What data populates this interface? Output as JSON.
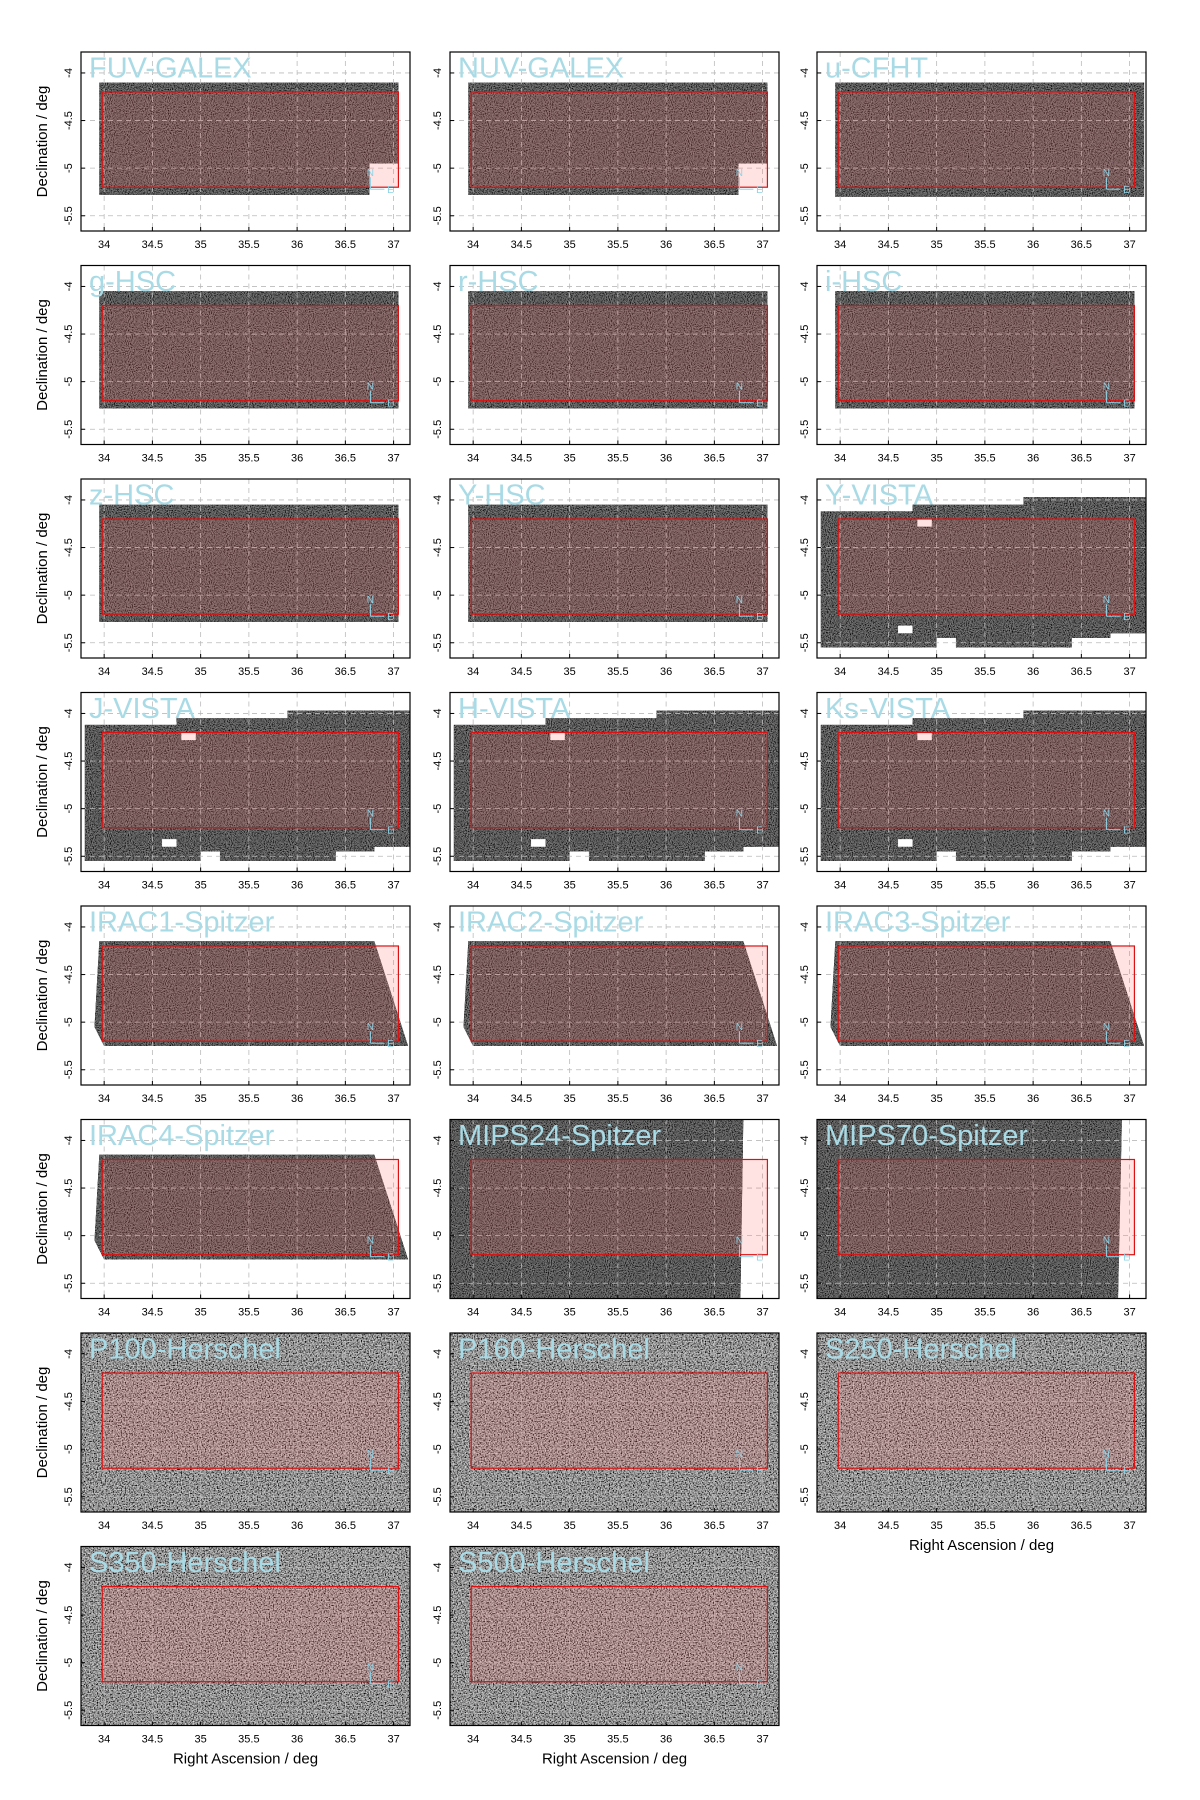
{
  "compass": {
    "north": "N",
    "east": "E"
  },
  "chart_data": [
    {
      "type": "image",
      "title": "FUV-GALEX",
      "ylabel": "Declination / deg",
      "xlim": [
        33.76,
        37.17
      ],
      "ylim": [
        -5.66,
        -3.78
      ],
      "xticks": [
        34,
        34.5,
        35,
        35.5,
        36,
        36.5,
        37
      ],
      "yticks": [
        -5.5,
        -5,
        -4.5,
        -4
      ],
      "field": {
        "xlim": [
          33.98,
          37.05
        ],
        "ylim": [
          -5.2,
          -4.2
        ]
      }
    },
    {
      "type": "image",
      "title": "NUV-GALEX",
      "xlim": [
        33.76,
        37.17
      ],
      "ylim": [
        -5.66,
        -3.78
      ],
      "xticks": [
        34,
        34.5,
        35,
        35.5,
        36,
        36.5,
        37
      ],
      "yticks": [
        -5.5,
        -5,
        -4.5,
        -4
      ],
      "field": {
        "xlim": [
          33.98,
          37.05
        ],
        "ylim": [
          -5.2,
          -4.2
        ]
      }
    },
    {
      "type": "image",
      "title": "u-CFHT",
      "xlim": [
        33.76,
        37.17
      ],
      "ylim": [
        -5.66,
        -3.78
      ],
      "xticks": [
        34,
        34.5,
        35,
        35.5,
        36,
        36.5,
        37
      ],
      "yticks": [
        -5.5,
        -5,
        -4.5,
        -4
      ],
      "field": {
        "xlim": [
          33.98,
          37.05
        ],
        "ylim": [
          -5.2,
          -4.2
        ]
      }
    },
    {
      "type": "image",
      "title": "g-HSC",
      "ylabel": "Declination / deg",
      "xlim": [
        33.76,
        37.17
      ],
      "ylim": [
        -5.66,
        -3.78
      ],
      "xticks": [
        34,
        34.5,
        35,
        35.5,
        36,
        36.5,
        37
      ],
      "yticks": [
        -5.5,
        -5,
        -4.5,
        -4
      ],
      "field": {
        "xlim": [
          33.98,
          37.05
        ],
        "ylim": [
          -5.2,
          -4.2
        ]
      }
    },
    {
      "type": "image",
      "title": "r-HSC",
      "xlim": [
        33.76,
        37.17
      ],
      "ylim": [
        -5.66,
        -3.78
      ],
      "xticks": [
        34,
        34.5,
        35,
        35.5,
        36,
        36.5,
        37
      ],
      "yticks": [
        -5.5,
        -5,
        -4.5,
        -4
      ],
      "field": {
        "xlim": [
          33.98,
          37.05
        ],
        "ylim": [
          -5.2,
          -4.2
        ]
      }
    },
    {
      "type": "image",
      "title": "i-HSC",
      "xlim": [
        33.76,
        37.17
      ],
      "ylim": [
        -5.66,
        -3.78
      ],
      "xticks": [
        34,
        34.5,
        35,
        35.5,
        36,
        36.5,
        37
      ],
      "yticks": [
        -5.5,
        -5,
        -4.5,
        -4
      ],
      "field": {
        "xlim": [
          33.98,
          37.05
        ],
        "ylim": [
          -5.2,
          -4.2
        ]
      }
    },
    {
      "type": "image",
      "title": "z-HSC",
      "ylabel": "Declination / deg",
      "xlim": [
        33.76,
        37.17
      ],
      "ylim": [
        -5.66,
        -3.78
      ],
      "xticks": [
        34,
        34.5,
        35,
        35.5,
        36,
        36.5,
        37
      ],
      "yticks": [
        -5.5,
        -5,
        -4.5,
        -4
      ],
      "field": {
        "xlim": [
          33.98,
          37.05
        ],
        "ylim": [
          -5.2,
          -4.2
        ]
      }
    },
    {
      "type": "image",
      "title": "Y-HSC",
      "xlim": [
        33.76,
        37.17
      ],
      "ylim": [
        -5.66,
        -3.78
      ],
      "xticks": [
        34,
        34.5,
        35,
        35.5,
        36,
        36.5,
        37
      ],
      "yticks": [
        -5.5,
        -5,
        -4.5,
        -4
      ],
      "field": {
        "xlim": [
          33.98,
          37.05
        ],
        "ylim": [
          -5.2,
          -4.2
        ]
      }
    },
    {
      "type": "image",
      "title": "Y-VISTA",
      "xlim": [
        33.76,
        37.17
      ],
      "ylim": [
        -5.66,
        -3.78
      ],
      "xticks": [
        34,
        34.5,
        35,
        35.5,
        36,
        36.5,
        37
      ],
      "yticks": [
        -5.5,
        -5,
        -4.5,
        -4
      ],
      "field": {
        "xlim": [
          33.98,
          37.05
        ],
        "ylim": [
          -5.2,
          -4.2
        ]
      }
    },
    {
      "type": "image",
      "title": "J-VISTA",
      "ylabel": "Declination / deg",
      "xlim": [
        33.76,
        37.17
      ],
      "ylim": [
        -5.66,
        -3.78
      ],
      "xticks": [
        34,
        34.5,
        35,
        35.5,
        36,
        36.5,
        37
      ],
      "yticks": [
        -5.5,
        -5,
        -4.5,
        -4
      ],
      "field": {
        "xlim": [
          33.98,
          37.05
        ],
        "ylim": [
          -5.2,
          -4.2
        ]
      }
    },
    {
      "type": "image",
      "title": "H-VISTA",
      "xlim": [
        33.76,
        37.17
      ],
      "ylim": [
        -5.66,
        -3.78
      ],
      "xticks": [
        34,
        34.5,
        35,
        35.5,
        36,
        36.5,
        37
      ],
      "yticks": [
        -5.5,
        -5,
        -4.5,
        -4
      ],
      "field": {
        "xlim": [
          33.98,
          37.05
        ],
        "ylim": [
          -5.2,
          -4.2
        ]
      }
    },
    {
      "type": "image",
      "title": "Ks-VISTA",
      "xlim": [
        33.76,
        37.17
      ],
      "ylim": [
        -5.66,
        -3.78
      ],
      "xticks": [
        34,
        34.5,
        35,
        35.5,
        36,
        36.5,
        37
      ],
      "yticks": [
        -5.5,
        -5,
        -4.5,
        -4
      ],
      "field": {
        "xlim": [
          33.98,
          37.05
        ],
        "ylim": [
          -5.2,
          -4.2
        ]
      }
    },
    {
      "type": "image",
      "title": "IRAC1-Spitzer",
      "ylabel": "Declination / deg",
      "xlim": [
        33.76,
        37.17
      ],
      "ylim": [
        -5.66,
        -3.78
      ],
      "xticks": [
        34,
        34.5,
        35,
        35.5,
        36,
        36.5,
        37
      ],
      "yticks": [
        -5.5,
        -5,
        -4.5,
        -4
      ],
      "field": {
        "xlim": [
          33.98,
          37.05
        ],
        "ylim": [
          -5.2,
          -4.2
        ]
      }
    },
    {
      "type": "image",
      "title": "IRAC2-Spitzer",
      "xlim": [
        33.76,
        37.17
      ],
      "ylim": [
        -5.66,
        -3.78
      ],
      "xticks": [
        34,
        34.5,
        35,
        35.5,
        36,
        36.5,
        37
      ],
      "yticks": [
        -5.5,
        -5,
        -4.5,
        -4
      ],
      "field": {
        "xlim": [
          33.98,
          37.05
        ],
        "ylim": [
          -5.2,
          -4.2
        ]
      }
    },
    {
      "type": "image",
      "title": "IRAC3-Spitzer",
      "xlim": [
        33.76,
        37.17
      ],
      "ylim": [
        -5.66,
        -3.78
      ],
      "xticks": [
        34,
        34.5,
        35,
        35.5,
        36,
        36.5,
        37
      ],
      "yticks": [
        -5.5,
        -5,
        -4.5,
        -4
      ],
      "field": {
        "xlim": [
          33.98,
          37.05
        ],
        "ylim": [
          -5.2,
          -4.2
        ]
      }
    },
    {
      "type": "image",
      "title": "IRAC4-Spitzer",
      "ylabel": "Declination / deg",
      "xlim": [
        33.76,
        37.17
      ],
      "ylim": [
        -5.66,
        -3.78
      ],
      "xticks": [
        34,
        34.5,
        35,
        35.5,
        36,
        36.5,
        37
      ],
      "yticks": [
        -5.5,
        -5,
        -4.5,
        -4
      ],
      "field": {
        "xlim": [
          33.98,
          37.05
        ],
        "ylim": [
          -5.2,
          -4.2
        ]
      }
    },
    {
      "type": "image",
      "title": "MIPS24-Spitzer",
      "xlim": [
        33.76,
        37.17
      ],
      "ylim": [
        -5.66,
        -3.78
      ],
      "xticks": [
        34,
        34.5,
        35,
        35.5,
        36,
        36.5,
        37
      ],
      "yticks": [
        -5.5,
        -5,
        -4.5,
        -4
      ],
      "field": {
        "xlim": [
          33.98,
          37.05
        ],
        "ylim": [
          -5.2,
          -4.2
        ]
      }
    },
    {
      "type": "image",
      "title": "MIPS70-Spitzer",
      "xlim": [
        33.76,
        37.17
      ],
      "ylim": [
        -5.66,
        -3.78
      ],
      "xticks": [
        34,
        34.5,
        35,
        35.5,
        36,
        36.5,
        37
      ],
      "yticks": [
        -5.5,
        -5,
        -4.5,
        -4
      ],
      "field": {
        "xlim": [
          33.98,
          37.05
        ],
        "ylim": [
          -5.2,
          -4.2
        ]
      }
    },
    {
      "type": "image",
      "title": "P100-Herschel",
      "ylabel": "Declination / deg",
      "xlim": [
        33.76,
        37.17
      ],
      "ylim": [
        -5.66,
        -3.78
      ],
      "xticks": [
        34,
        34.5,
        35,
        35.5,
        36,
        36.5,
        37
      ],
      "yticks": [
        -5.5,
        -5,
        -4.5,
        -4
      ],
      "field": {
        "xlim": [
          33.98,
          37.05
        ],
        "ylim": [
          -5.2,
          -4.2
        ]
      }
    },
    {
      "type": "image",
      "title": "P160-Herschel",
      "xlim": [
        33.76,
        37.17
      ],
      "ylim": [
        -5.66,
        -3.78
      ],
      "xticks": [
        34,
        34.5,
        35,
        35.5,
        36,
        36.5,
        37
      ],
      "yticks": [
        -5.5,
        -5,
        -4.5,
        -4
      ],
      "field": {
        "xlim": [
          33.98,
          37.05
        ],
        "ylim": [
          -5.2,
          -4.2
        ]
      }
    },
    {
      "type": "image",
      "title": "S250-Herschel",
      "xlabel": "Right Ascension / deg",
      "xlim": [
        33.76,
        37.17
      ],
      "ylim": [
        -5.66,
        -3.78
      ],
      "xticks": [
        34,
        34.5,
        35,
        35.5,
        36,
        36.5,
        37
      ],
      "yticks": [
        -5.5,
        -5,
        -4.5,
        -4
      ],
      "field": {
        "xlim": [
          33.98,
          37.05
        ],
        "ylim": [
          -5.2,
          -4.2
        ]
      }
    },
    {
      "type": "image",
      "title": "S350-Herschel",
      "xlabel": "Right Ascension / deg",
      "ylabel": "Declination / deg",
      "xlim": [
        33.76,
        37.17
      ],
      "ylim": [
        -5.66,
        -3.78
      ],
      "xticks": [
        34,
        34.5,
        35,
        35.5,
        36,
        36.5,
        37
      ],
      "yticks": [
        -5.5,
        -5,
        -4.5,
        -4
      ],
      "field": {
        "xlim": [
          33.98,
          37.05
        ],
        "ylim": [
          -5.2,
          -4.2
        ]
      }
    },
    {
      "type": "image",
      "title": "S500-Herschel",
      "xlabel": "Right Ascension / deg",
      "xlim": [
        33.76,
        37.17
      ],
      "ylim": [
        -5.66,
        -3.78
      ],
      "xticks": [
        34,
        34.5,
        35,
        35.5,
        36,
        36.5,
        37
      ],
      "yticks": [
        -5.5,
        -5,
        -4.5,
        -4
      ],
      "field": {
        "xlim": [
          33.98,
          37.05
        ],
        "ylim": [
          -5.2,
          -4.2
        ]
      }
    }
  ]
}
